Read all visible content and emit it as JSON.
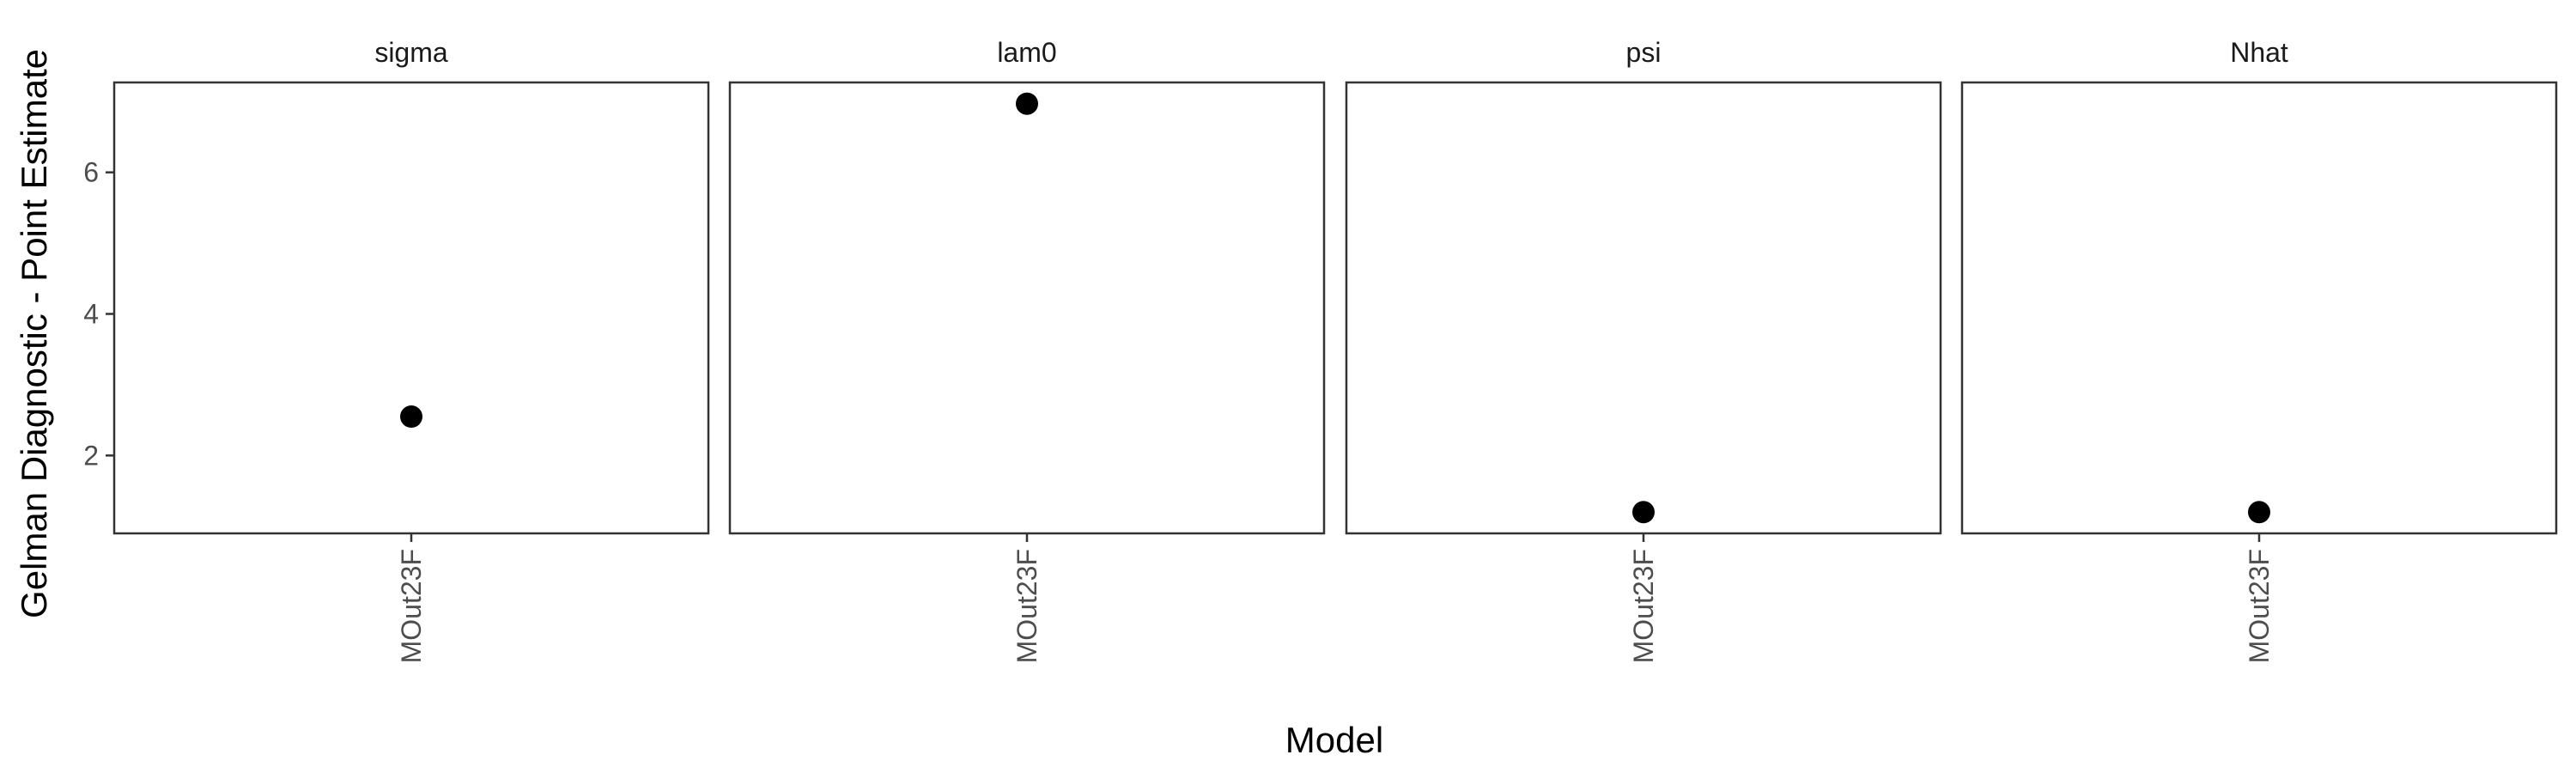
{
  "chart_data": {
    "type": "scatter",
    "facet_variable": "parameter",
    "facets": [
      "sigma",
      "lam0",
      "psi",
      "Nhat"
    ],
    "categories": [
      "MOut23F"
    ],
    "series": [
      {
        "facet": "sigma",
        "x": "MOut23F",
        "y": 2.55
      },
      {
        "facet": "lam0",
        "x": "MOut23F",
        "y": 6.97
      },
      {
        "facet": "psi",
        "x": "MOut23F",
        "y": 1.2
      },
      {
        "facet": "Nhat",
        "x": "MOut23F",
        "y": 1.2
      }
    ],
    "xlabel": "Model",
    "ylabel": "Gelman Diagnostic - Point Estimate",
    "ylim": [
      0.9,
      7.27
    ],
    "yticks": [
      2,
      4,
      6
    ],
    "grid": false,
    "legend": "none",
    "colors": {
      "point": "#000000",
      "panel_border": "#333333",
      "tick_text": "#4d4d4d"
    }
  }
}
